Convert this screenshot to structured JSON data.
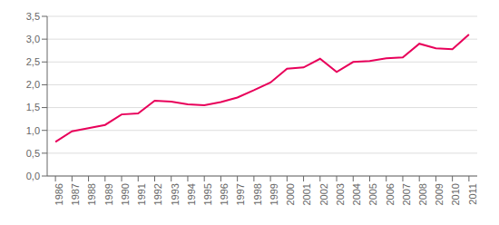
{
  "chart_data": {
    "type": "line",
    "x": [
      1986,
      1987,
      1988,
      1989,
      1990,
      1991,
      1992,
      1993,
      1994,
      1995,
      1996,
      1997,
      1998,
      1999,
      2000,
      2001,
      2002,
      2003,
      2004,
      2005,
      2006,
      2007,
      2008,
      2009,
      2010,
      2011
    ],
    "values": [
      0.75,
      0.98,
      1.05,
      1.12,
      1.35,
      1.37,
      1.65,
      1.63,
      1.57,
      1.55,
      1.62,
      1.72,
      1.88,
      2.05,
      2.35,
      2.38,
      2.57,
      2.28,
      2.5,
      2.52,
      2.58,
      2.6,
      2.9,
      2.8,
      2.78,
      3.1
    ],
    "color": "#e8005a",
    "xlim": [
      1985.5,
      2011.5
    ],
    "xticks": [
      1986,
      1987,
      1988,
      1989,
      1990,
      1991,
      1992,
      1993,
      1994,
      1995,
      1996,
      1997,
      1998,
      1999,
      2000,
      2001,
      2002,
      2003,
      2004,
      2005,
      2006,
      2007,
      2008,
      2009,
      2010,
      2011
    ],
    "ylim": [
      0.0,
      3.5
    ],
    "yticks": [
      {
        "value": 0.0,
        "label": "0,0"
      },
      {
        "value": 0.5,
        "label": "0,5"
      },
      {
        "value": 1.0,
        "label": "1,0"
      },
      {
        "value": 1.5,
        "label": "1,5"
      },
      {
        "value": 2.0,
        "label": "2,0"
      },
      {
        "value": 2.5,
        "label": "2,5"
      },
      {
        "value": 3.0,
        "label": "3,0"
      },
      {
        "value": 3.5,
        "label": "3,5"
      }
    ],
    "grid": true
  }
}
